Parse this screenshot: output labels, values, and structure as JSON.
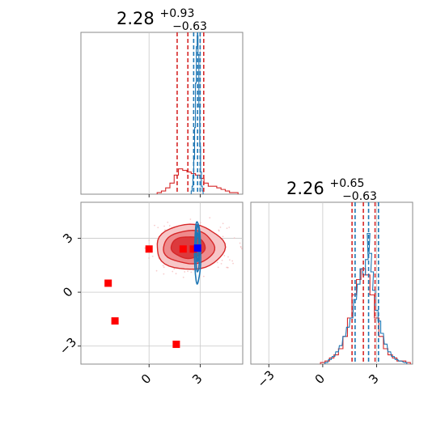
{
  "chart_data": [
    {
      "type": "histogram",
      "panel": "marginal-x",
      "title": {
        "value": "2.28",
        "plus": "+0.93",
        "minus": "−0.63"
      },
      "xlim": [
        -4.0,
        5.5
      ],
      "quantile_lines_red": [
        1.65,
        2.28,
        3.21
      ],
      "quantile_lines_blue": [
        2.62,
        2.85,
        3.0
      ],
      "bins_red": [
        [
          0.6,
          0.01
        ],
        [
          0.85,
          0.02
        ],
        [
          1.1,
          0.04
        ],
        [
          1.35,
          0.07
        ],
        [
          1.6,
          0.12
        ],
        [
          1.85,
          0.16
        ],
        [
          2.1,
          0.15
        ],
        [
          2.35,
          0.14
        ],
        [
          2.6,
          0.13
        ],
        [
          2.85,
          0.12
        ],
        [
          3.1,
          0.1
        ],
        [
          3.35,
          0.07
        ],
        [
          3.6,
          0.05
        ],
        [
          3.85,
          0.05
        ],
        [
          4.1,
          0.04
        ],
        [
          4.35,
          0.03
        ],
        [
          4.6,
          0.02
        ],
        [
          4.85,
          0.01
        ],
        [
          5.1,
          0.01
        ]
      ],
      "bins_blue": [
        [
          2.5,
          0.02
        ],
        [
          2.55,
          0.05
        ],
        [
          2.6,
          0.12
        ],
        [
          2.65,
          0.22
        ],
        [
          2.7,
          0.42
        ],
        [
          2.75,
          0.7
        ],
        [
          2.8,
          0.93
        ],
        [
          2.85,
          1.0
        ],
        [
          2.9,
          0.88
        ],
        [
          2.95,
          0.55
        ],
        [
          3.0,
          0.3
        ],
        [
          3.05,
          0.14
        ],
        [
          3.1,
          0.05
        ],
        [
          3.15,
          0.02
        ]
      ]
    },
    {
      "type": "contour",
      "panel": "joint",
      "xlim": [
        -4.0,
        5.5
      ],
      "ylim": [
        -4.0,
        5.0
      ],
      "x_ticks": [
        {
          "v": 0,
          "label": "0"
        },
        {
          "v": 3,
          "label": "3"
        }
      ],
      "y_ticks": [
        {
          "v": 3,
          "label": "3"
        },
        {
          "v": 0,
          "label": "0"
        },
        {
          "v": -3,
          "label": "−3"
        }
      ],
      "red_center": [
        2.4,
        2.5
      ],
      "blue_center": [
        2.85,
        2.6
      ],
      "red_points": [
        [
          0.0,
          2.4
        ],
        [
          2.0,
          2.4
        ],
        [
          2.6,
          2.4
        ],
        [
          -2.4,
          0.5
        ],
        [
          -2.0,
          -1.6
        ],
        [
          1.6,
          -2.9
        ]
      ],
      "blue_points": [
        [
          2.85,
          2.45
        ]
      ]
    },
    {
      "type": "histogram",
      "panel": "marginal-y",
      "title": {
        "value": "2.26",
        "plus": "+0.65",
        "minus": "−0.63"
      },
      "xlim": [
        -4.0,
        5.0
      ],
      "x_ticks": [
        {
          "v": -3,
          "label": "−3"
        },
        {
          "v": 0,
          "label": "0"
        },
        {
          "v": 3,
          "label": "3"
        }
      ],
      "quantile_lines_red": [
        1.63,
        2.26,
        2.91
      ],
      "quantile_lines_blue": [
        1.8,
        2.55,
        3.1
      ],
      "bins_red": [
        [
          0.0,
          0.01
        ],
        [
          0.25,
          0.02
        ],
        [
          0.5,
          0.04
        ],
        [
          0.75,
          0.06
        ],
        [
          1.0,
          0.1
        ],
        [
          1.25,
          0.18
        ],
        [
          1.5,
          0.3
        ],
        [
          1.75,
          0.45
        ],
        [
          2.0,
          0.55
        ],
        [
          2.25,
          0.62
        ],
        [
          2.5,
          0.58
        ],
        [
          2.75,
          0.45
        ],
        [
          3.0,
          0.3
        ],
        [
          3.25,
          0.18
        ],
        [
          3.5,
          0.1
        ],
        [
          3.75,
          0.06
        ],
        [
          4.0,
          0.04
        ],
        [
          4.25,
          0.02
        ],
        [
          4.5,
          0.02
        ],
        [
          4.75,
          0.01
        ]
      ],
      "bins_blue": [
        [
          0.2,
          0.01
        ],
        [
          0.4,
          0.03
        ],
        [
          0.6,
          0.05
        ],
        [
          0.8,
          0.08
        ],
        [
          1.0,
          0.12
        ],
        [
          1.2,
          0.18
        ],
        [
          1.4,
          0.24
        ],
        [
          1.6,
          0.3
        ],
        [
          1.8,
          0.42
        ],
        [
          2.0,
          0.52
        ],
        [
          2.15,
          0.62
        ],
        [
          2.3,
          0.58
        ],
        [
          2.45,
          0.68
        ],
        [
          2.55,
          0.85
        ],
        [
          2.65,
          0.72
        ],
        [
          2.75,
          0.6
        ],
        [
          2.85,
          0.48
        ],
        [
          3.0,
          0.35
        ],
        [
          3.15,
          0.28
        ],
        [
          3.3,
          0.2
        ],
        [
          3.5,
          0.13
        ],
        [
          3.7,
          0.08
        ],
        [
          3.9,
          0.05
        ],
        [
          4.1,
          0.03
        ],
        [
          4.3,
          0.02
        ],
        [
          4.6,
          0.01
        ]
      ]
    }
  ]
}
